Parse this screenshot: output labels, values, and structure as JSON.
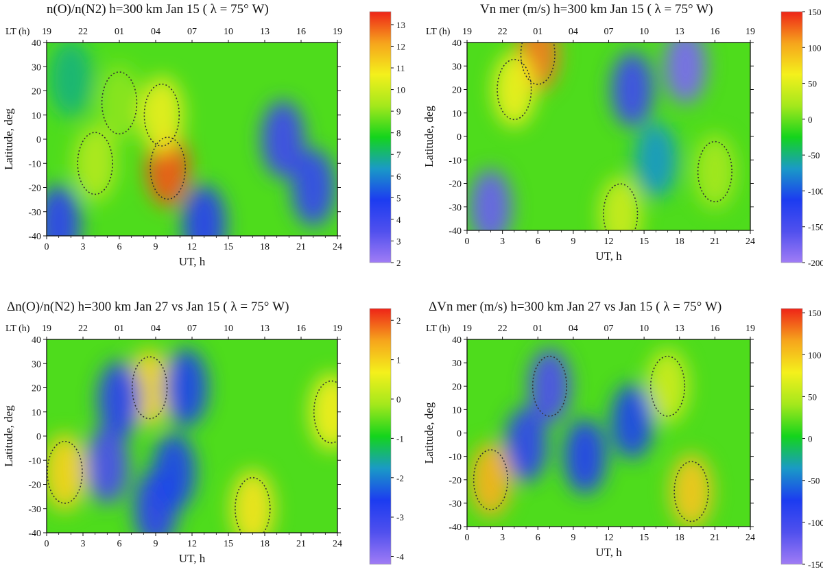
{
  "colors": {
    "scale": [
      "#a07cf5",
      "#5050ee",
      "#1c3cf0",
      "#1a9ac6",
      "#14d41c",
      "#a4e81c",
      "#f4f01c",
      "#f6a41c",
      "#ee2418"
    ],
    "contour": "#333333",
    "background": "#ffffff"
  },
  "chart_data": [
    {
      "type": "heatmap",
      "title": "n(O)/n(N2)   h=300 km   Jan 15 ( λ = 75° W)",
      "xlabel": "UT, h",
      "ylabel": "Latitude, deg",
      "top_axis_label": "LT (h)",
      "x_ticks": [
        "0",
        "3",
        "6",
        "9",
        "12",
        "15",
        "18",
        "21",
        "24"
      ],
      "lt_ticks": [
        "19",
        "22",
        "01",
        "04",
        "07",
        "10",
        "13",
        "16",
        "19"
      ],
      "y_ticks": [
        "40",
        "30",
        "20",
        "10",
        "0",
        "-10",
        "-20",
        "-30",
        "-40"
      ],
      "xlim": [
        0,
        24
      ],
      "ylim": [
        -40,
        40
      ],
      "colorbar_ticks": [
        "13",
        "12",
        "11",
        "10",
        "9",
        "8",
        "7",
        "6",
        "5",
        "4",
        "3",
        "2"
      ],
      "zlim": [
        2,
        13.6
      ],
      "features": [
        {
          "ut": 10,
          "lat": -12,
          "value": 13
        },
        {
          "ut": 9.5,
          "lat": 10,
          "value": 10.5
        },
        {
          "ut": 4,
          "lat": -10,
          "value": 9.5
        },
        {
          "ut": 6,
          "lat": 15,
          "value": 9
        },
        {
          "ut": 19.5,
          "lat": 0,
          "value": 4
        },
        {
          "ut": 22,
          "lat": -20,
          "value": 4.2
        },
        {
          "ut": 1,
          "lat": -35,
          "value": 4.5
        },
        {
          "ut": 13,
          "lat": -35,
          "value": 4.6
        },
        {
          "ut": 2,
          "lat": 25,
          "value": 7
        }
      ]
    },
    {
      "type": "heatmap",
      "title": "Vn mer (m/s)   h=300 km   Jan 15 ( λ = 75° W)",
      "xlabel": "UT, h",
      "ylabel": "Latitude, deg",
      "top_axis_label": "LT (h)",
      "x_ticks": [
        "0",
        "3",
        "6",
        "9",
        "12",
        "15",
        "18",
        "21",
        "24"
      ],
      "lt_ticks": [
        "19",
        "22",
        "01",
        "04",
        "07",
        "10",
        "13",
        "16",
        "19"
      ],
      "y_ticks": [
        "40",
        "30",
        "20",
        "10",
        "0",
        "-10",
        "-20",
        "-30",
        "-40"
      ],
      "xlim": [
        0,
        24
      ],
      "ylim": [
        -40,
        40
      ],
      "colorbar_ticks": [
        "150",
        "100",
        "50",
        "0",
        "-50",
        "-100",
        "-150",
        "-200"
      ],
      "zlim": [
        -200,
        150
      ],
      "features": [
        {
          "ut": 6,
          "lat": 35,
          "value": 120
        },
        {
          "ut": 4,
          "lat": 20,
          "value": 60
        },
        {
          "ut": 13,
          "lat": -33,
          "value": 40
        },
        {
          "ut": 21,
          "lat": -15,
          "value": 20
        },
        {
          "ut": 18.5,
          "lat": 30,
          "value": -180
        },
        {
          "ut": 14,
          "lat": 20,
          "value": -140
        },
        {
          "ut": 2,
          "lat": -30,
          "value": -170
        },
        {
          "ut": 16,
          "lat": -10,
          "value": -70
        }
      ]
    },
    {
      "type": "heatmap",
      "title": "Δn(O)/n(N2)    h=300 km    Jan 27 vs Jan 15 ( λ = 75° W)",
      "xlabel": "UT, h",
      "ylabel": "Latitude, deg",
      "top_axis_label": "LT (h)",
      "x_ticks": [
        "0",
        "3",
        "6",
        "9",
        "12",
        "15",
        "18",
        "21",
        "24"
      ],
      "lt_ticks": [
        "19",
        "22",
        "01",
        "04",
        "07",
        "10",
        "13",
        "16",
        "19"
      ],
      "y_ticks": [
        "40",
        "30",
        "20",
        "10",
        "0",
        "-10",
        "-20",
        "-30",
        "-40"
      ],
      "xlim": [
        0,
        24
      ],
      "ylim": [
        -40,
        40
      ],
      "colorbar_ticks": [
        "2",
        "1",
        "0",
        "-1",
        "-2",
        "-3",
        "-4"
      ],
      "zlim": [
        -4.2,
        2.3
      ],
      "features": [
        {
          "ut": 1.5,
          "lat": -15,
          "value": 1
        },
        {
          "ut": 8.5,
          "lat": 20,
          "value": 1
        },
        {
          "ut": 17,
          "lat": -30,
          "value": 0.8
        },
        {
          "ut": 23.5,
          "lat": 10,
          "value": 0.7
        },
        {
          "ut": 5,
          "lat": -12,
          "value": -3.3
        },
        {
          "ut": 6,
          "lat": 15,
          "value": -2.8
        },
        {
          "ut": 9,
          "lat": -30,
          "value": -2.8
        },
        {
          "ut": 10.5,
          "lat": -15,
          "value": -2.5
        },
        {
          "ut": 11.5,
          "lat": 20,
          "value": -2.5
        }
      ]
    },
    {
      "type": "heatmap",
      "title": "ΔVn mer (m/s)  h=300 km   Jan 27 vs Jan 15 ( λ = 75° W)",
      "xlabel": "UT, h",
      "ylabel": "Latitude, deg",
      "top_axis_label": "LT (h)",
      "x_ticks": [
        "0",
        "3",
        "6",
        "9",
        "12",
        "15",
        "18",
        "21",
        "24"
      ],
      "lt_ticks": [
        "19",
        "22",
        "01",
        "04",
        "07",
        "10",
        "13",
        "16",
        "19"
      ],
      "y_ticks": [
        "40",
        "30",
        "20",
        "10",
        "0",
        "-10",
        "-20",
        "-30",
        "-40"
      ],
      "xlim": [
        0,
        24
      ],
      "ylim": [
        -40,
        40
      ],
      "colorbar_ticks": [
        "150",
        "100",
        "50",
        "0",
        "-50",
        "-100",
        "-150"
      ],
      "zlim": [
        -150,
        155
      ],
      "features": [
        {
          "ut": 2,
          "lat": -20,
          "value": 110
        },
        {
          "ut": 19,
          "lat": -25,
          "value": 100
        },
        {
          "ut": 17,
          "lat": 20,
          "value": 60
        },
        {
          "ut": 7,
          "lat": 20,
          "value": -110
        },
        {
          "ut": 5,
          "lat": -5,
          "value": -90
        },
        {
          "ut": 14,
          "lat": 5,
          "value": -70
        },
        {
          "ut": 10,
          "lat": -10,
          "value": -80
        }
      ]
    }
  ]
}
